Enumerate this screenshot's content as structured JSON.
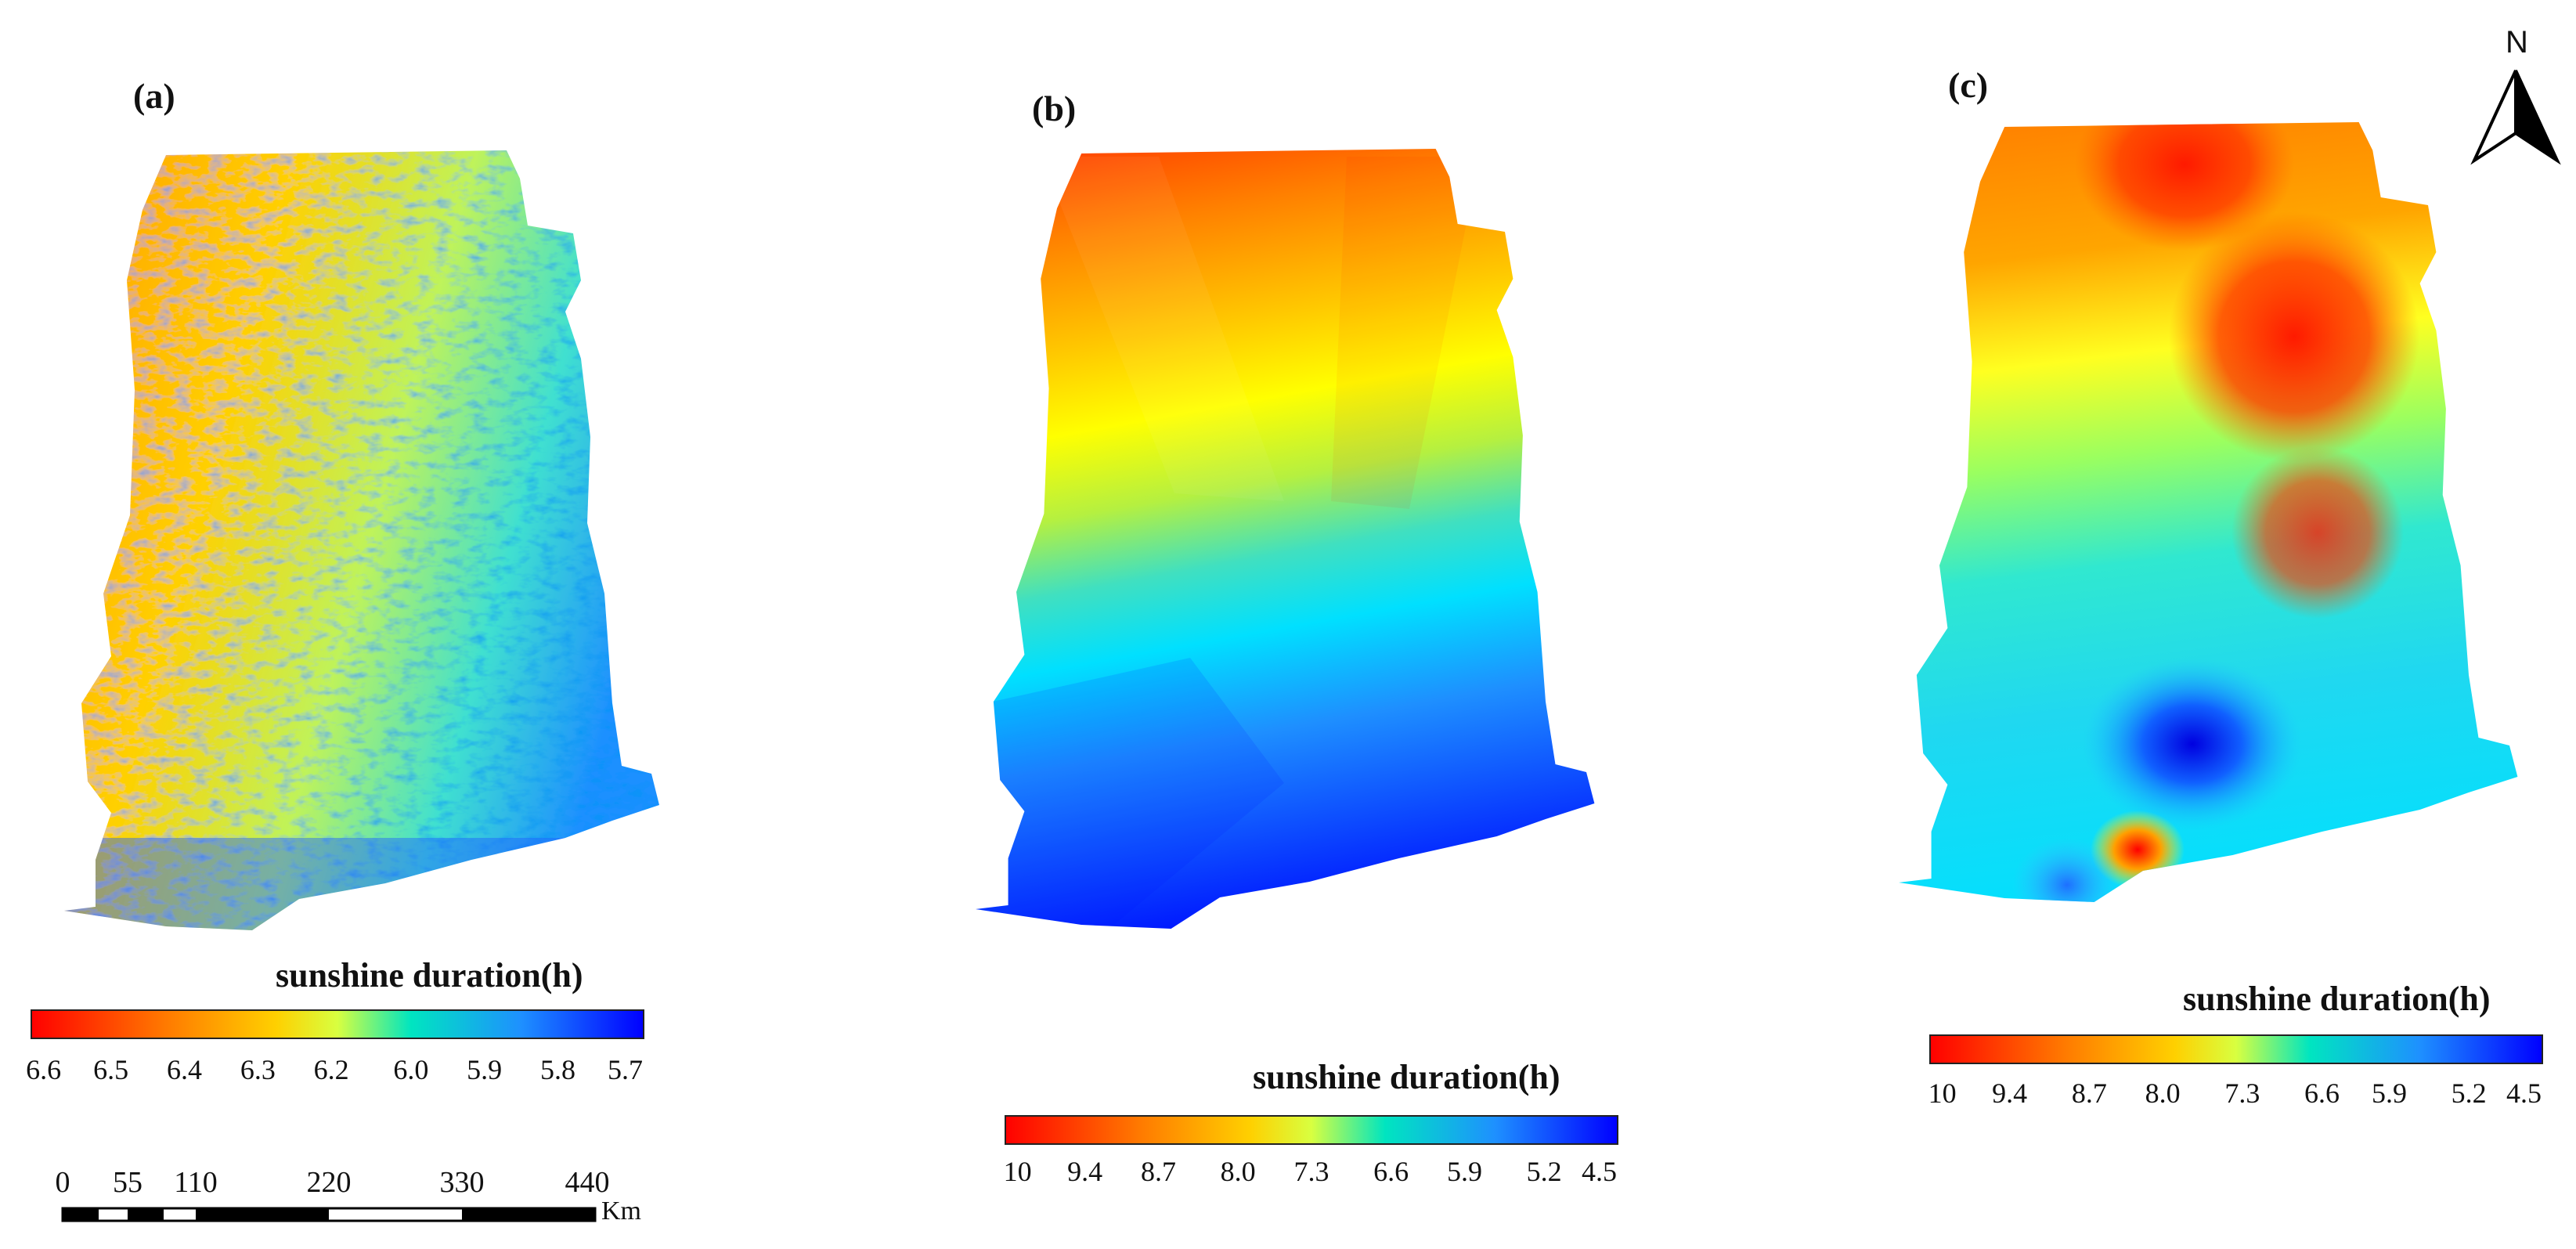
{
  "panels": [
    {
      "label": "(a)",
      "legend_title": "sunshine duration(h)",
      "ticks": [
        "6.6",
        "6.5",
        "6.4",
        "6.3",
        "6.2",
        "6.0",
        "5.9",
        "5.8",
        "5.7"
      ]
    },
    {
      "label": "(b)",
      "legend_title": "sunshine duration(h)",
      "ticks": [
        "10",
        "9.4",
        "8.7",
        "8.0",
        "7.3",
        "6.6",
        "5.9",
        "5.2",
        "4.5"
      ]
    },
    {
      "label": "(c)",
      "legend_title": "sunshine duration(h)",
      "ticks": [
        "10",
        "9.4",
        "8.7",
        "8.0",
        "7.3",
        "6.6",
        "5.9",
        "5.2",
        "4.5"
      ]
    }
  ],
  "scale_bar": {
    "labels": [
      "0",
      "55",
      "110",
      "220",
      "330",
      "440"
    ],
    "unit": "Km"
  },
  "north_arrow": {
    "letter": "N"
  },
  "colors": {
    "ramp": [
      "#ff0000",
      "#ff8c00",
      "#ffd700",
      "#ffff00",
      "#adff2f",
      "#00e5c0",
      "#00bfff",
      "#1e6fff",
      "#0000ff"
    ]
  }
}
